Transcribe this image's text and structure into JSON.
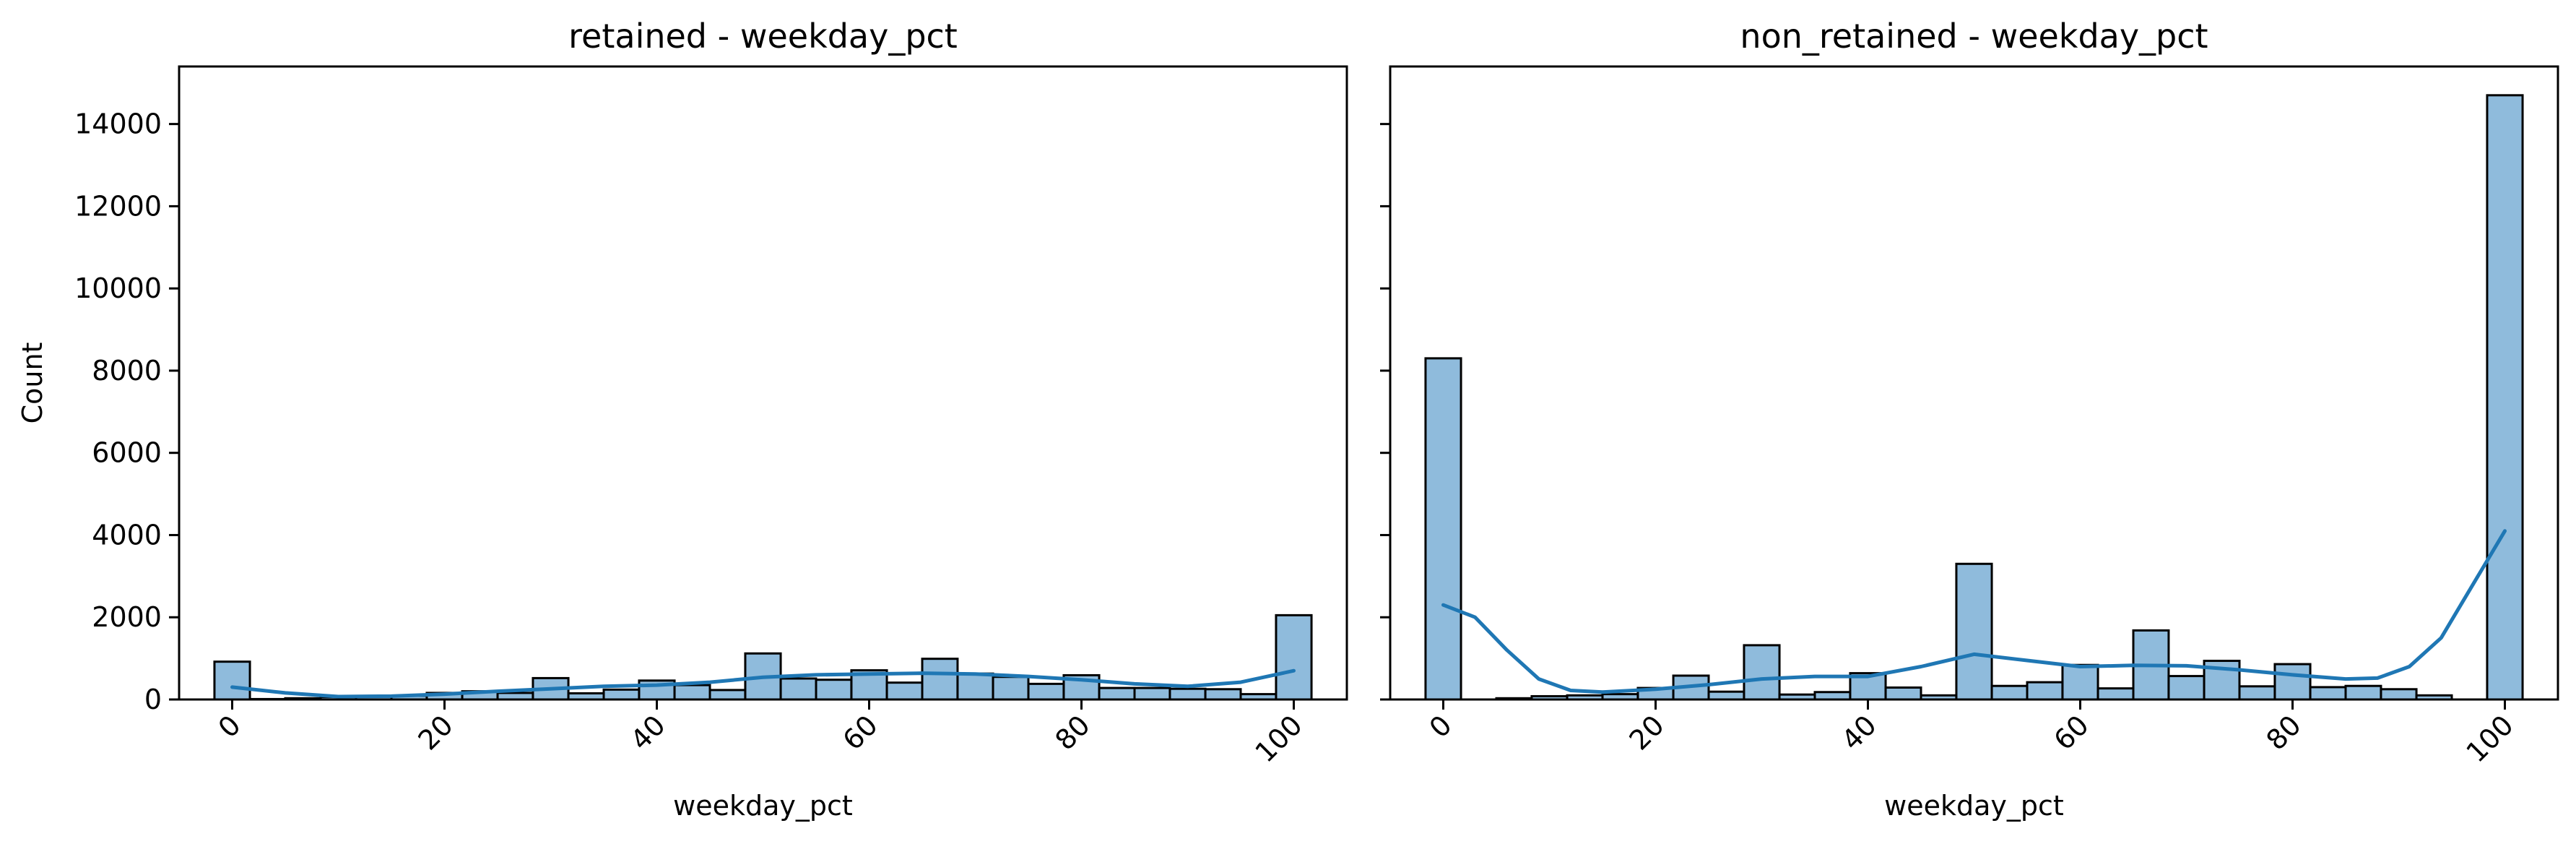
{
  "chart_data": [
    {
      "type": "histogram",
      "title": "retained - weekday_pct",
      "xlabel": "weekday_pct",
      "ylabel": "Count",
      "xlim": [
        -5,
        105
      ],
      "ylim": [
        0,
        15400
      ],
      "xticks": [
        0,
        20,
        40,
        60,
        80,
        100
      ],
      "yticks": [
        0,
        2000,
        4000,
        6000,
        8000,
        10000,
        12000,
        14000
      ],
      "bar_color": "#8fbbdc",
      "kde_color": "#1f77b4",
      "bin_edges": [
        -1.67,
        1.67,
        5,
        8.33,
        11.67,
        15,
        18.33,
        21.67,
        25,
        28.33,
        31.67,
        35,
        38.33,
        41.67,
        45,
        48.33,
        51.67,
        55,
        58.33,
        61.67,
        65,
        68.33,
        71.67,
        75,
        78.33,
        81.67,
        85,
        88.33,
        91.67,
        95,
        98.33,
        101.67
      ],
      "counts": [
        920,
        10,
        30,
        60,
        70,
        90,
        160,
        200,
        160,
        520,
        150,
        240,
        460,
        350,
        230,
        1120,
        510,
        480,
        710,
        410,
        990,
        630,
        550,
        380,
        590,
        280,
        280,
        260,
        250,
        130,
        2050
      ],
      "kde": {
        "x": [
          0,
          5,
          10,
          15,
          20,
          25,
          30,
          35,
          40,
          45,
          50,
          55,
          60,
          65,
          70,
          75,
          80,
          85,
          90,
          95,
          100
        ],
        "y": [
          300,
          160,
          70,
          80,
          130,
          200,
          260,
          320,
          350,
          420,
          540,
          600,
          620,
          640,
          620,
          560,
          480,
          380,
          320,
          420,
          700
        ]
      }
    },
    {
      "type": "histogram",
      "title": "non_retained - weekday_pct",
      "xlabel": "weekday_pct",
      "ylabel": "",
      "xlim": [
        -5,
        105
      ],
      "ylim": [
        0,
        15400
      ],
      "xticks": [
        0,
        20,
        40,
        60,
        80,
        100
      ],
      "yticks": [
        0,
        2000,
        4000,
        6000,
        8000,
        10000,
        12000,
        14000
      ],
      "bar_color": "#8fbbdc",
      "kde_color": "#1f77b4",
      "bin_edges": [
        -1.67,
        1.67,
        5,
        8.33,
        11.67,
        15,
        18.33,
        21.67,
        25,
        28.33,
        31.67,
        35,
        38.33,
        41.67,
        45,
        48.33,
        51.67,
        55,
        58.33,
        61.67,
        65,
        68.33,
        71.67,
        75,
        78.33,
        81.67,
        85,
        88.33,
        91.67,
        95,
        98.33,
        101.67
      ],
      "counts": [
        8300,
        0,
        30,
        80,
        100,
        130,
        280,
        580,
        190,
        1320,
        120,
        180,
        640,
        290,
        100,
        3300,
        330,
        420,
        840,
        270,
        1680,
        570,
        940,
        320,
        860,
        300,
        330,
        250,
        100,
        0,
        14700
      ],
      "kde": {
        "x": [
          0,
          3,
          6,
          9,
          12,
          15,
          20,
          25,
          30,
          35,
          40,
          45,
          50,
          55,
          60,
          65,
          70,
          75,
          80,
          85,
          88,
          91,
          94,
          97,
          100
        ],
        "y": [
          2300,
          2000,
          1200,
          500,
          220,
          180,
          250,
          360,
          500,
          560,
          560,
          800,
          1100,
          950,
          800,
          830,
          820,
          720,
          600,
          500,
          520,
          800,
          1500,
          2800,
          4100
        ]
      }
    }
  ]
}
